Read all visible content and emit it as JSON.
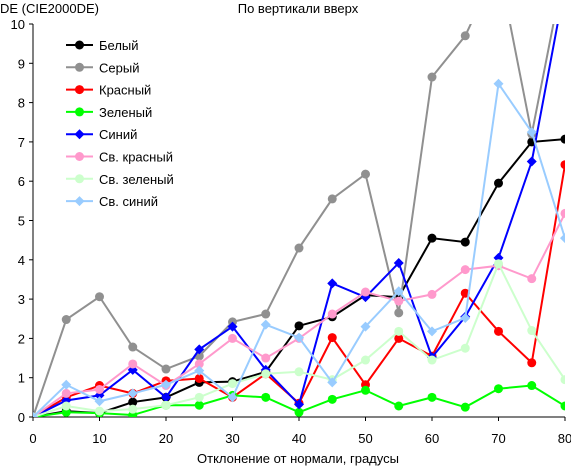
{
  "chart_data": {
    "type": "line",
    "title": "По вертикали вверх",
    "ylabel": "DE (CIE2000DE)",
    "xlabel": "Отклонение от нормали, градусы",
    "x": [
      0,
      5,
      10,
      15,
      20,
      25,
      30,
      35,
      40,
      45,
      50,
      55,
      60,
      65,
      70,
      75,
      80
    ],
    "xlim": [
      0,
      80
    ],
    "ylim": [
      0,
      10
    ],
    "xticks": [
      "0",
      "10",
      "20",
      "30",
      "40",
      "50",
      "60",
      "70",
      "80"
    ],
    "yticks": [
      "0",
      "1",
      "2",
      "3",
      "4",
      "5",
      "6",
      "7",
      "8",
      "9",
      "10"
    ],
    "grid": false,
    "legend_position": "top-left",
    "series": [
      {
        "name": "Белый",
        "color": "#000000",
        "marker": "circle",
        "values": [
          0,
          0.15,
          0.1,
          0.38,
          0.5,
          0.88,
          0.9,
          1.15,
          2.32,
          2.55,
          3.1,
          3.05,
          4.55,
          4.45,
          5.95,
          7.0,
          7.07
        ]
      },
      {
        "name": "Серый",
        "color": "#909090",
        "marker": "circle",
        "values": [
          0,
          2.48,
          3.06,
          1.78,
          1.22,
          1.55,
          2.42,
          2.62,
          4.3,
          5.55,
          6.18,
          2.65,
          8.65,
          9.7,
          11.5,
          7.2,
          11.5
        ]
      },
      {
        "name": "Красный",
        "color": "#ff0000",
        "marker": "circle",
        "values": [
          0,
          0.5,
          0.8,
          0.6,
          0.92,
          0.98,
          0.5,
          1.1,
          0.35,
          2.02,
          0.82,
          2.0,
          1.55,
          3.15,
          2.18,
          1.38,
          6.42
        ]
      },
      {
        "name": "Зеленый",
        "color": "#00ff00",
        "marker": "circle",
        "values": [
          0,
          0.12,
          0.1,
          0.05,
          0.3,
          0.3,
          0.55,
          0.5,
          0.12,
          0.45,
          0.68,
          0.28,
          0.5,
          0.25,
          0.72,
          0.8,
          0.28
        ]
      },
      {
        "name": "Синий",
        "color": "#0000ff",
        "marker": "diamond",
        "values": [
          0,
          0.42,
          0.55,
          1.2,
          0.5,
          1.72,
          2.3,
          1.2,
          0.32,
          3.4,
          3.05,
          3.92,
          1.52,
          2.55,
          4.05,
          6.5,
          11.0
        ]
      },
      {
        "name": "Св. красный",
        "color": "#ff99cc",
        "marker": "circle",
        "values": [
          0,
          0.6,
          0.7,
          1.35,
          0.8,
          1.35,
          2.0,
          1.5,
          2.0,
          2.62,
          3.18,
          2.95,
          3.12,
          3.75,
          3.85,
          3.52,
          5.18
        ]
      },
      {
        "name": "Св. зеленый",
        "color": "#ccffcc",
        "marker": "circle",
        "values": [
          0,
          0.28,
          0.15,
          0.2,
          0.3,
          0.5,
          0.85,
          1.1,
          1.15,
          0.95,
          1.45,
          2.18,
          1.45,
          1.75,
          3.9,
          2.2,
          0.95
        ]
      },
      {
        "name": "Св. синий",
        "color": "#99ccff",
        "marker": "diamond",
        "values": [
          0,
          0.82,
          0.4,
          0.6,
          0.82,
          1.18,
          0.5,
          2.35,
          2.02,
          0.88,
          2.3,
          3.2,
          2.18,
          2.52,
          8.48,
          7.25,
          4.55
        ]
      }
    ]
  }
}
